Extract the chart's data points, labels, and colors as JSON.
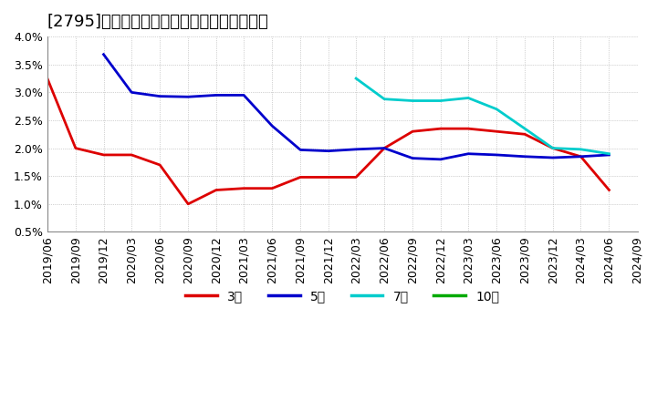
{
  "title": "[2795]　経常利益マージンの標準偏差の推移",
  "ylim": [
    0.005,
    0.04
  ],
  "yticks": [
    0.005,
    0.01,
    0.015,
    0.02,
    0.025,
    0.03,
    0.035,
    0.04
  ],
  "ytick_labels": [
    "0.5%",
    "1.0%",
    "1.5%",
    "2.0%",
    "2.5%",
    "3.0%",
    "3.5%",
    "4.0%"
  ],
  "background_color": "#ffffff",
  "plot_bg_color": "#ffffff",
  "grid_color": "#aaaaaa",
  "series": {
    "3年": {
      "color": "#dd0000",
      "data": [
        [
          "2019-06",
          0.0325
        ],
        [
          "2019-09",
          0.02
        ],
        [
          "2019-12",
          0.0188
        ],
        [
          "2020-03",
          0.0188
        ],
        [
          "2020-06",
          0.017
        ],
        [
          "2020-09",
          0.01
        ],
        [
          "2020-12",
          0.0125
        ],
        [
          "2021-03",
          0.0128
        ],
        [
          "2021-06",
          0.0128
        ],
        [
          "2021-09",
          0.0148
        ],
        [
          "2021-12",
          0.0148
        ],
        [
          "2022-03",
          0.0148
        ],
        [
          "2022-06",
          0.02
        ],
        [
          "2022-09",
          0.023
        ],
        [
          "2022-12",
          0.0235
        ],
        [
          "2023-03",
          0.0235
        ],
        [
          "2023-06",
          0.023
        ],
        [
          "2023-09",
          0.0225
        ],
        [
          "2023-12",
          0.02
        ],
        [
          "2024-03",
          0.0185
        ],
        [
          "2024-06",
          0.0125
        ]
      ]
    },
    "5年": {
      "color": "#0000cc",
      "data": [
        [
          "2019-06",
          null
        ],
        [
          "2019-09",
          null
        ],
        [
          "2019-12",
          0.0368
        ],
        [
          "2020-03",
          0.03
        ],
        [
          "2020-06",
          0.0293
        ],
        [
          "2020-09",
          0.0292
        ],
        [
          "2020-12",
          0.0295
        ],
        [
          "2021-03",
          0.0295
        ],
        [
          "2021-06",
          0.024
        ],
        [
          "2021-09",
          0.0197
        ],
        [
          "2021-12",
          0.0195
        ],
        [
          "2022-03",
          0.0198
        ],
        [
          "2022-06",
          0.02
        ],
        [
          "2022-09",
          0.0182
        ],
        [
          "2022-12",
          0.018
        ],
        [
          "2023-03",
          0.019
        ],
        [
          "2023-06",
          0.0188
        ],
        [
          "2023-09",
          0.0185
        ],
        [
          "2023-12",
          0.0183
        ],
        [
          "2024-03",
          0.0185
        ],
        [
          "2024-06",
          0.0188
        ]
      ]
    },
    "7年": {
      "color": "#00cccc",
      "data": [
        [
          "2022-03",
          0.0325
        ],
        [
          "2022-06",
          0.0288
        ],
        [
          "2022-09",
          0.0285
        ],
        [
          "2022-12",
          0.0285
        ],
        [
          "2023-03",
          0.029
        ],
        [
          "2023-06",
          0.027
        ],
        [
          "2023-09",
          0.0235
        ],
        [
          "2023-12",
          0.02
        ],
        [
          "2024-03",
          0.0198
        ],
        [
          "2024-06",
          0.019
        ]
      ]
    },
    "10年": {
      "color": "#00aa00",
      "data": []
    }
  },
  "legend_labels": [
    "3年",
    "5年",
    "7年",
    "10年"
  ],
  "legend_colors": [
    "#dd0000",
    "#0000cc",
    "#00cccc",
    "#00aa00"
  ],
  "xaxis_labels": [
    "2019/06",
    "2019/09",
    "2019/12",
    "2020/03",
    "2020/06",
    "2020/09",
    "2020/12",
    "2021/03",
    "2021/06",
    "2021/09",
    "2021/12",
    "2022/03",
    "2022/06",
    "2022/09",
    "2022/12",
    "2023/03",
    "2023/06",
    "2023/09",
    "2023/12",
    "2024/03",
    "2024/06",
    "2024/09"
  ],
  "title_fontsize": 13,
  "tick_fontsize": 9,
  "legend_fontsize": 10
}
